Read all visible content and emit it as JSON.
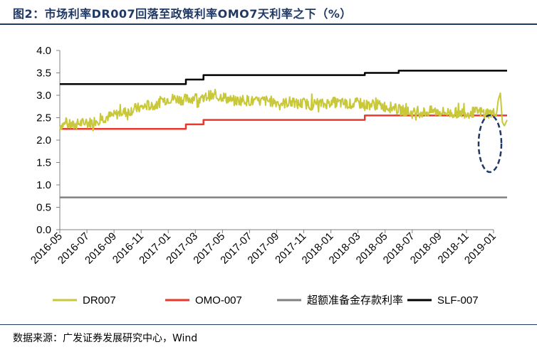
{
  "figure": {
    "title": "图2：市场利率DR007回落至政策利率OMO7天利率之下（%）",
    "source": "数据来源：广发证券发展研究中心，Wind"
  },
  "chart_data": {
    "type": "line",
    "title": "市场利率DR007回落至政策利率OMO7天利率之下（%）",
    "ylabel": "%",
    "ylim": [
      0,
      4.0
    ],
    "yticks": [
      "0.0",
      "0.5",
      "1.0",
      "1.5",
      "2.0",
      "2.5",
      "3.0",
      "3.5",
      "4.0"
    ],
    "xrange": [
      "2016-05",
      "2019-01"
    ],
    "xticks": [
      "2016-05",
      "2016-07",
      "2016-09",
      "2016-11",
      "2017-01",
      "2017-03",
      "2017-05",
      "2017-07",
      "2017-09",
      "2017-11",
      "2018-01",
      "2018-03",
      "2018-05",
      "2018-07",
      "2018-09",
      "2018-11",
      "2019-01"
    ],
    "legend_position": "bottom",
    "highlight": "dashed ellipse around the latest DR007 drop below OMO-007 (Jan 2019)",
    "series": [
      {
        "name": "DR007",
        "color": "#c8c83a",
        "points": [
          [
            0,
            2.33
          ],
          [
            0.5,
            2.36
          ],
          [
            1,
            2.32
          ],
          [
            1.5,
            2.38
          ],
          [
            2,
            2.37
          ],
          [
            2.5,
            2.42
          ],
          [
            3,
            2.47
          ],
          [
            3.5,
            2.52
          ],
          [
            4,
            2.55
          ],
          [
            4.5,
            2.62
          ],
          [
            5,
            2.63
          ],
          [
            5.5,
            2.7
          ],
          [
            6,
            2.72
          ],
          [
            6.5,
            2.78
          ],
          [
            7,
            2.75
          ],
          [
            7.5,
            2.88
          ],
          [
            8,
            2.92
          ],
          [
            8.5,
            2.93
          ],
          [
            9,
            2.9
          ],
          [
            9.5,
            2.92
          ],
          [
            10,
            2.95
          ],
          [
            10.5,
            2.9
          ],
          [
            11,
            3.0
          ],
          [
            11.5,
            2.95
          ],
          [
            12,
            2.98
          ],
          [
            12.5,
            2.9
          ],
          [
            13,
            2.87
          ],
          [
            13.5,
            2.9
          ],
          [
            14,
            2.88
          ],
          [
            14.5,
            2.85
          ],
          [
            15,
            2.88
          ],
          [
            15.5,
            2.87
          ],
          [
            16,
            2.85
          ],
          [
            16.5,
            2.82
          ],
          [
            17,
            2.85
          ],
          [
            17.5,
            2.8
          ],
          [
            18,
            2.83
          ],
          [
            18.5,
            2.78
          ],
          [
            19,
            2.82
          ],
          [
            19.5,
            2.8
          ],
          [
            20,
            2.85
          ],
          [
            20.5,
            2.83
          ],
          [
            21,
            2.82
          ],
          [
            21.5,
            2.8
          ],
          [
            22,
            2.83
          ],
          [
            22.5,
            2.78
          ],
          [
            23,
            2.8
          ],
          [
            23.5,
            2.78
          ],
          [
            24,
            2.75
          ],
          [
            24.5,
            2.72
          ],
          [
            25,
            2.68
          ],
          [
            25.5,
            2.65
          ],
          [
            26,
            2.6
          ],
          [
            26.5,
            2.62
          ],
          [
            27,
            2.62
          ],
          [
            27.5,
            2.65
          ],
          [
            28,
            2.63
          ],
          [
            28.5,
            2.62
          ],
          [
            29,
            2.6
          ],
          [
            29.5,
            2.62
          ],
          [
            30,
            2.6
          ],
          [
            30.5,
            2.62
          ],
          [
            31,
            2.63
          ],
          [
            31.5,
            2.6
          ],
          [
            32,
            2.6
          ],
          [
            32.2,
            2.55
          ],
          [
            32.35,
            2.9
          ],
          [
            32.5,
            3.05
          ],
          [
            32.65,
            2.4
          ],
          [
            32.8,
            2.32
          ],
          [
            33,
            2.45
          ]
        ]
      },
      {
        "name": "OMO-007",
        "color": "#e8392e",
        "points": [
          [
            0,
            2.25
          ],
          [
            9.3,
            2.25
          ],
          [
            9.3,
            2.35
          ],
          [
            10.6,
            2.35
          ],
          [
            10.6,
            2.45
          ],
          [
            22.5,
            2.45
          ],
          [
            22.5,
            2.55
          ],
          [
            33,
            2.55
          ]
        ]
      },
      {
        "name": "超额准备金存款利率",
        "color": "#808080",
        "points": [
          [
            0,
            0.72
          ],
          [
            33,
            0.72
          ]
        ]
      },
      {
        "name": "SLF-007",
        "color": "#000000",
        "points": [
          [
            0,
            3.25
          ],
          [
            9.3,
            3.25
          ],
          [
            9.3,
            3.35
          ],
          [
            10.6,
            3.35
          ],
          [
            10.6,
            3.45
          ],
          [
            22.5,
            3.45
          ],
          [
            22.5,
            3.5
          ],
          [
            25,
            3.5
          ],
          [
            25,
            3.55
          ],
          [
            33,
            3.55
          ]
        ]
      }
    ]
  }
}
